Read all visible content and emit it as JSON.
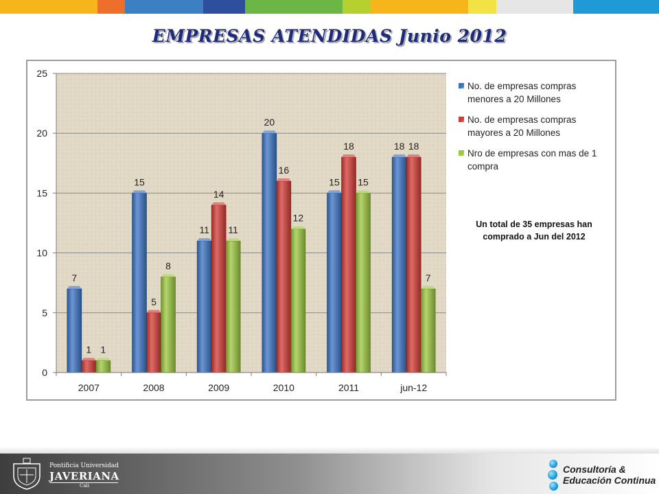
{
  "slide": {
    "title": "EMPRESAS ATENDIDAS Junio 2012",
    "stripe_colors": [
      "#f7b51c",
      "#ee6f2b",
      "#3c80c3",
      "#2d4f9e",
      "#6cb645",
      "#b6d12f",
      "#f7b51c",
      "#f2e244",
      "#e6e6e6",
      "#1f9ad7"
    ],
    "note": "Un total de 35 empresas han comprado a Jun del 2012"
  },
  "chart_data": {
    "type": "bar",
    "categories": [
      "2007",
      "2008",
      "2009",
      "2010",
      "2011",
      "jun-12"
    ],
    "series": [
      {
        "name": "No. de empresas compras menores a 20 Millones",
        "color": "#3b73c4",
        "values": [
          7,
          15,
          11,
          20,
          15,
          18
        ]
      },
      {
        "name": "No. de empresas compras mayores a 20 Millones",
        "color": "#d33a34",
        "values": [
          1,
          5,
          14,
          16,
          18,
          18
        ]
      },
      {
        "name": "Nro de empresas con mas de 1 compra",
        "color": "#9cc73f",
        "values": [
          1,
          8,
          11,
          12,
          15,
          7
        ]
      }
    ],
    "ylim": [
      0,
      25
    ],
    "yticks": [
      0,
      5,
      10,
      15,
      20,
      25
    ],
    "ytick_labels": [
      "0",
      "5",
      "10",
      "15",
      "20",
      "25"
    ],
    "grid": true,
    "legend": "right",
    "data_labels": true
  },
  "footer": {
    "university_line1": "Pontificia Universidad",
    "university_line2": "JAVERIANA",
    "university_line3": "Cali",
    "brand_line1": "Consultoría &",
    "brand_line2": "Educación Continua"
  }
}
